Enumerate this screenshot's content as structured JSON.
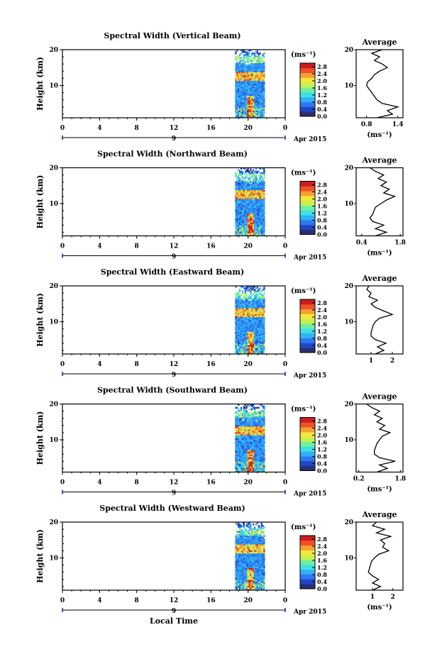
{
  "date_label": "Apr 2015",
  "day_label": "9",
  "xlabel": "Local Time",
  "x_ticks": [
    "0",
    "4",
    "8",
    "12",
    "16",
    "20",
    "0"
  ],
  "y_ticks": [
    "20",
    "10"
  ],
  "colorbar_unit": "(ms⁻¹)",
  "colorbar_ticks": [
    "2.8",
    "2.4",
    "2.0",
    "1.6",
    "1.2",
    "0.8",
    "0.4",
    "0.0"
  ],
  "colors": {
    "colormap": [
      "#2b2f6e",
      "#1f46c8",
      "#2f78f0",
      "#2fb3f5",
      "#3ee0e6",
      "#6ff0a0",
      "#c8f050",
      "#f5e63c",
      "#f5a032",
      "#f0502a",
      "#c81e1e"
    ]
  },
  "chart_data": [
    {
      "type": "heatmap",
      "title": "Spectral Width (Vertical Beam)",
      "ylabel": "Height (km)",
      "xlim": [
        0,
        24
      ],
      "ylim": [
        1,
        20
      ],
      "colorbar_range": [
        0,
        3.0
      ],
      "data_time_range": [
        18.6,
        21.8
      ],
      "profile": {
        "title": "Average",
        "xlabel": "(ms⁻¹)",
        "xticks": [
          "0.8",
          "1.4"
        ],
        "xlim": [
          0.6,
          1.5
        ],
        "ylim": [
          1,
          20
        ],
        "heights": [
          1,
          2,
          3,
          4,
          5,
          6,
          7,
          8,
          9,
          10,
          11,
          12,
          13,
          14,
          15,
          16,
          17,
          18,
          19,
          20
        ],
        "values": [
          1.0,
          1.3,
          1.2,
          1.4,
          1.1,
          1.0,
          0.95,
          0.9,
          0.85,
          0.8,
          0.82,
          0.9,
          0.95,
          1.05,
          1.2,
          1.1,
          0.95,
          1.05,
          0.9,
          1.1
        ]
      }
    },
    {
      "type": "heatmap",
      "title": "Spectral Width (Northward Beam)",
      "ylabel": "Height (km)",
      "xlim": [
        0,
        24
      ],
      "ylim": [
        1,
        20
      ],
      "colorbar_range": [
        0,
        3.0
      ],
      "data_time_range": [
        18.6,
        21.8
      ],
      "profile": {
        "title": "Average",
        "xlabel": "(ms⁻¹)",
        "xticks": [
          "0.4",
          "1.8"
        ],
        "xlim": [
          0.2,
          1.9
        ],
        "ylim": [
          1,
          20
        ],
        "heights": [
          1,
          2,
          3,
          4,
          5,
          6,
          7,
          8,
          9,
          10,
          11,
          12,
          13,
          14,
          15,
          16,
          17,
          18,
          19,
          20
        ],
        "values": [
          0.9,
          1.3,
          0.9,
          1.2,
          0.8,
          0.7,
          0.8,
          0.85,
          0.9,
          1.1,
          1.3,
          1.6,
          1.2,
          1.4,
          1.1,
          1.3,
          1.0,
          1.2,
          0.9,
          0.7
        ]
      }
    },
    {
      "type": "heatmap",
      "title": "Spectral Width (Eastward Beam)",
      "ylabel": "Height (km)",
      "xlim": [
        0,
        24
      ],
      "ylim": [
        1,
        20
      ],
      "colorbar_range": [
        0,
        3.0
      ],
      "data_time_range": [
        18.6,
        21.8
      ],
      "profile": {
        "title": "Average",
        "xlabel": "",
        "xticks": [
          "1",
          "2"
        ],
        "xlim": [
          0.3,
          2.5
        ],
        "ylim": [
          1,
          20
        ],
        "heights": [
          1,
          2,
          3,
          4,
          5,
          6,
          7,
          8,
          9,
          10,
          11,
          12,
          13,
          14,
          15,
          16,
          17,
          18,
          19,
          20
        ],
        "values": [
          1.2,
          1.6,
          1.3,
          1.7,
          1.2,
          1.0,
          1.0,
          1.05,
          1.1,
          1.2,
          1.4,
          2.0,
          1.6,
          1.2,
          1.0,
          1.3,
          0.9,
          1.0,
          0.8,
          0.9
        ]
      }
    },
    {
      "type": "heatmap",
      "title": "Spectral Width (Southward Beam)",
      "ylabel": "Height (km)",
      "xlim": [
        0,
        24
      ],
      "ylim": [
        1,
        20
      ],
      "colorbar_range": [
        0,
        3.0
      ],
      "data_time_range": [
        18.6,
        21.8
      ],
      "profile": {
        "title": "Average",
        "xlabel": "(ms⁻¹)",
        "xticks": [
          "0.2",
          "1.8"
        ],
        "xlim": [
          0.1,
          1.9
        ],
        "ylim": [
          1,
          20
        ],
        "heights": [
          1,
          2,
          3,
          4,
          5,
          6,
          7,
          8,
          9,
          10,
          11,
          12,
          13,
          14,
          15,
          16,
          17,
          18,
          19,
          20
        ],
        "values": [
          0.9,
          1.3,
          1.0,
          1.6,
          1.0,
          0.8,
          0.8,
          0.85,
          0.9,
          1.0,
          1.1,
          1.4,
          1.0,
          1.2,
          0.9,
          1.1,
          0.8,
          1.0,
          0.7,
          0.5
        ]
      }
    },
    {
      "type": "heatmap",
      "title": "Spectral Width (Westward Beam)",
      "ylabel": "Height (km)",
      "xlim": [
        0,
        24
      ],
      "ylim": [
        1,
        20
      ],
      "colorbar_range": [
        0,
        3.0
      ],
      "data_time_range": [
        18.6,
        21.8
      ],
      "profile": {
        "title": "Average",
        "xlabel": "(ms⁻¹)",
        "xticks": [
          "1",
          "2"
        ],
        "xlim": [
          0.2,
          2.5
        ],
        "ylim": [
          1,
          20
        ],
        "heights": [
          1,
          2,
          3,
          4,
          5,
          6,
          7,
          8,
          9,
          10,
          11,
          12,
          13,
          14,
          15,
          16,
          17,
          18,
          19,
          20
        ],
        "values": [
          1.0,
          1.4,
          1.0,
          1.3,
          1.0,
          0.8,
          0.85,
          0.9,
          0.95,
          1.1,
          1.3,
          1.8,
          1.5,
          1.6,
          1.4,
          1.9,
          1.2,
          1.6,
          1.0,
          1.2
        ]
      }
    }
  ]
}
